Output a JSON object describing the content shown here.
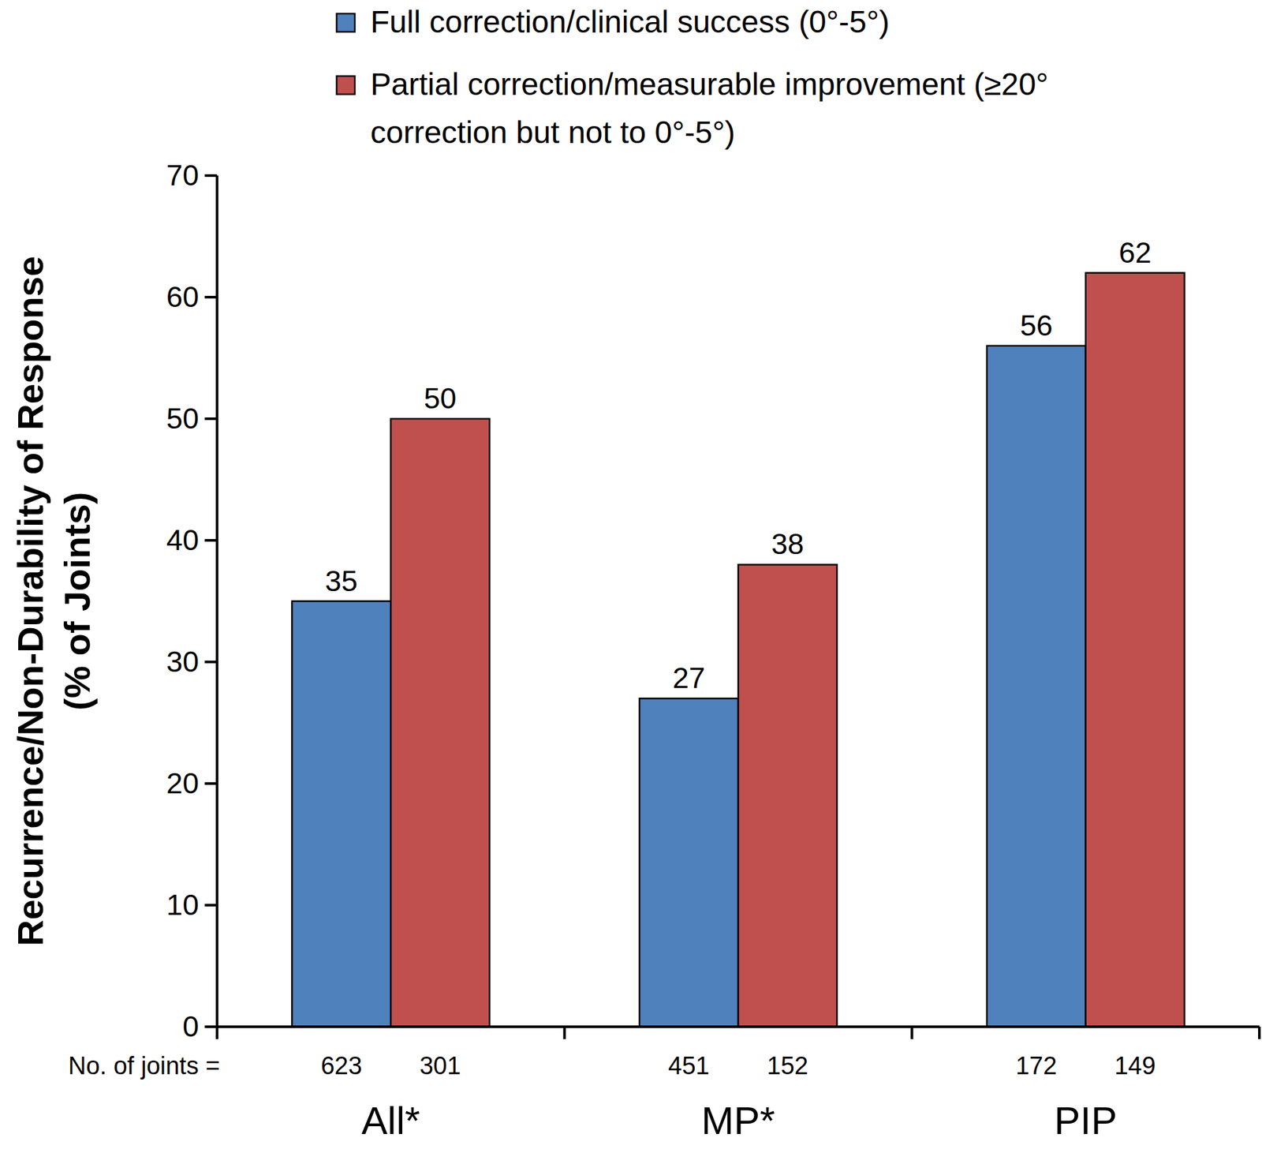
{
  "chart_data": {
    "type": "bar",
    "y_label": "Recurrence/Non-Durability of Response (% of Joints)",
    "categories": [
      "All*",
      "MP*",
      "PIP"
    ],
    "n_joints_label": "No. of joints =",
    "series": [
      {
        "name": "Full correction/clinical success (0°-5°)",
        "color": "#4F81BD",
        "values": [
          35,
          27,
          56
        ],
        "n_joints": [
          623,
          451,
          172
        ]
      },
      {
        "name": "Partial correction/measurable improvement (≥20° correction but not to 0°-5°)",
        "color": "#C0504D",
        "values": [
          50,
          38,
          62
        ],
        "n_joints": [
          301,
          152,
          149
        ]
      }
    ],
    "ylim": [
      0,
      70
    ],
    "yticks": [
      0,
      10,
      20,
      30,
      40,
      50,
      60,
      70
    ],
    "legend": "top",
    "data_labels": true,
    "grid": false
  }
}
